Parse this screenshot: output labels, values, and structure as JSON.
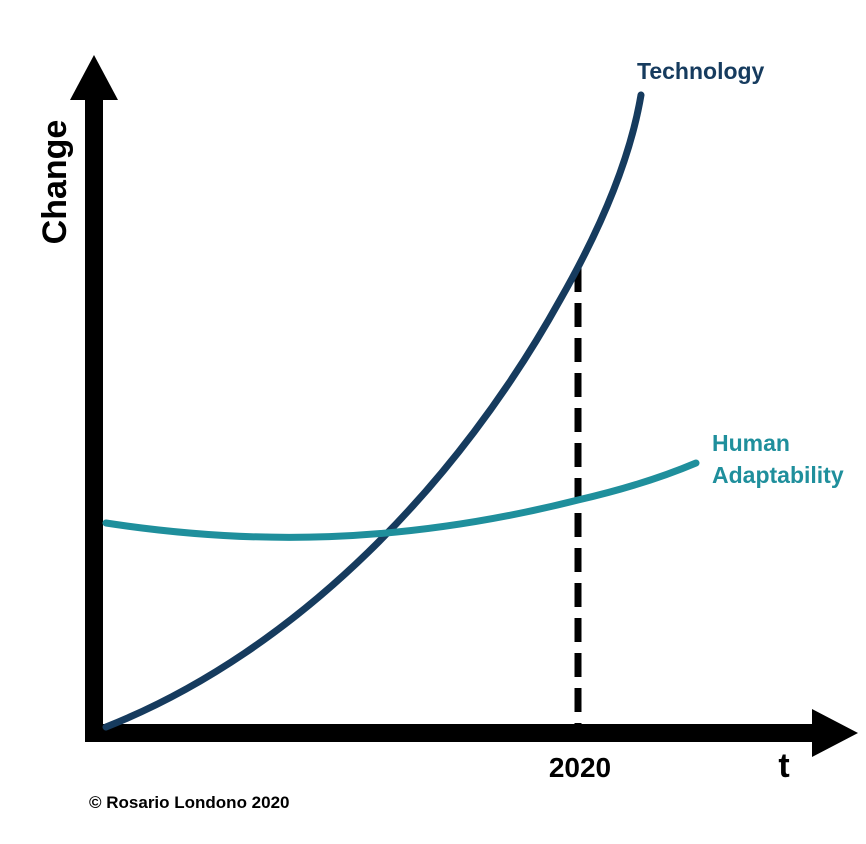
{
  "chart_data": {
    "type": "line",
    "title": "",
    "xlabel": "t",
    "ylabel": "Change",
    "x_tick_labels": [
      "2020"
    ],
    "series": [
      {
        "name": "Technology",
        "color": "#163b5e"
      },
      {
        "name": "Human Adaptability",
        "color": "#1f8f9c"
      }
    ],
    "annotations": [
      "2020 marker"
    ],
    "grid": false,
    "legend": "labels at line ends"
  },
  "series_labels": {
    "technology": "Technology",
    "human_line1": "Human",
    "human_line2": "Adaptability"
  },
  "footer": {
    "copyright": "© Rosario Londono 2020"
  }
}
